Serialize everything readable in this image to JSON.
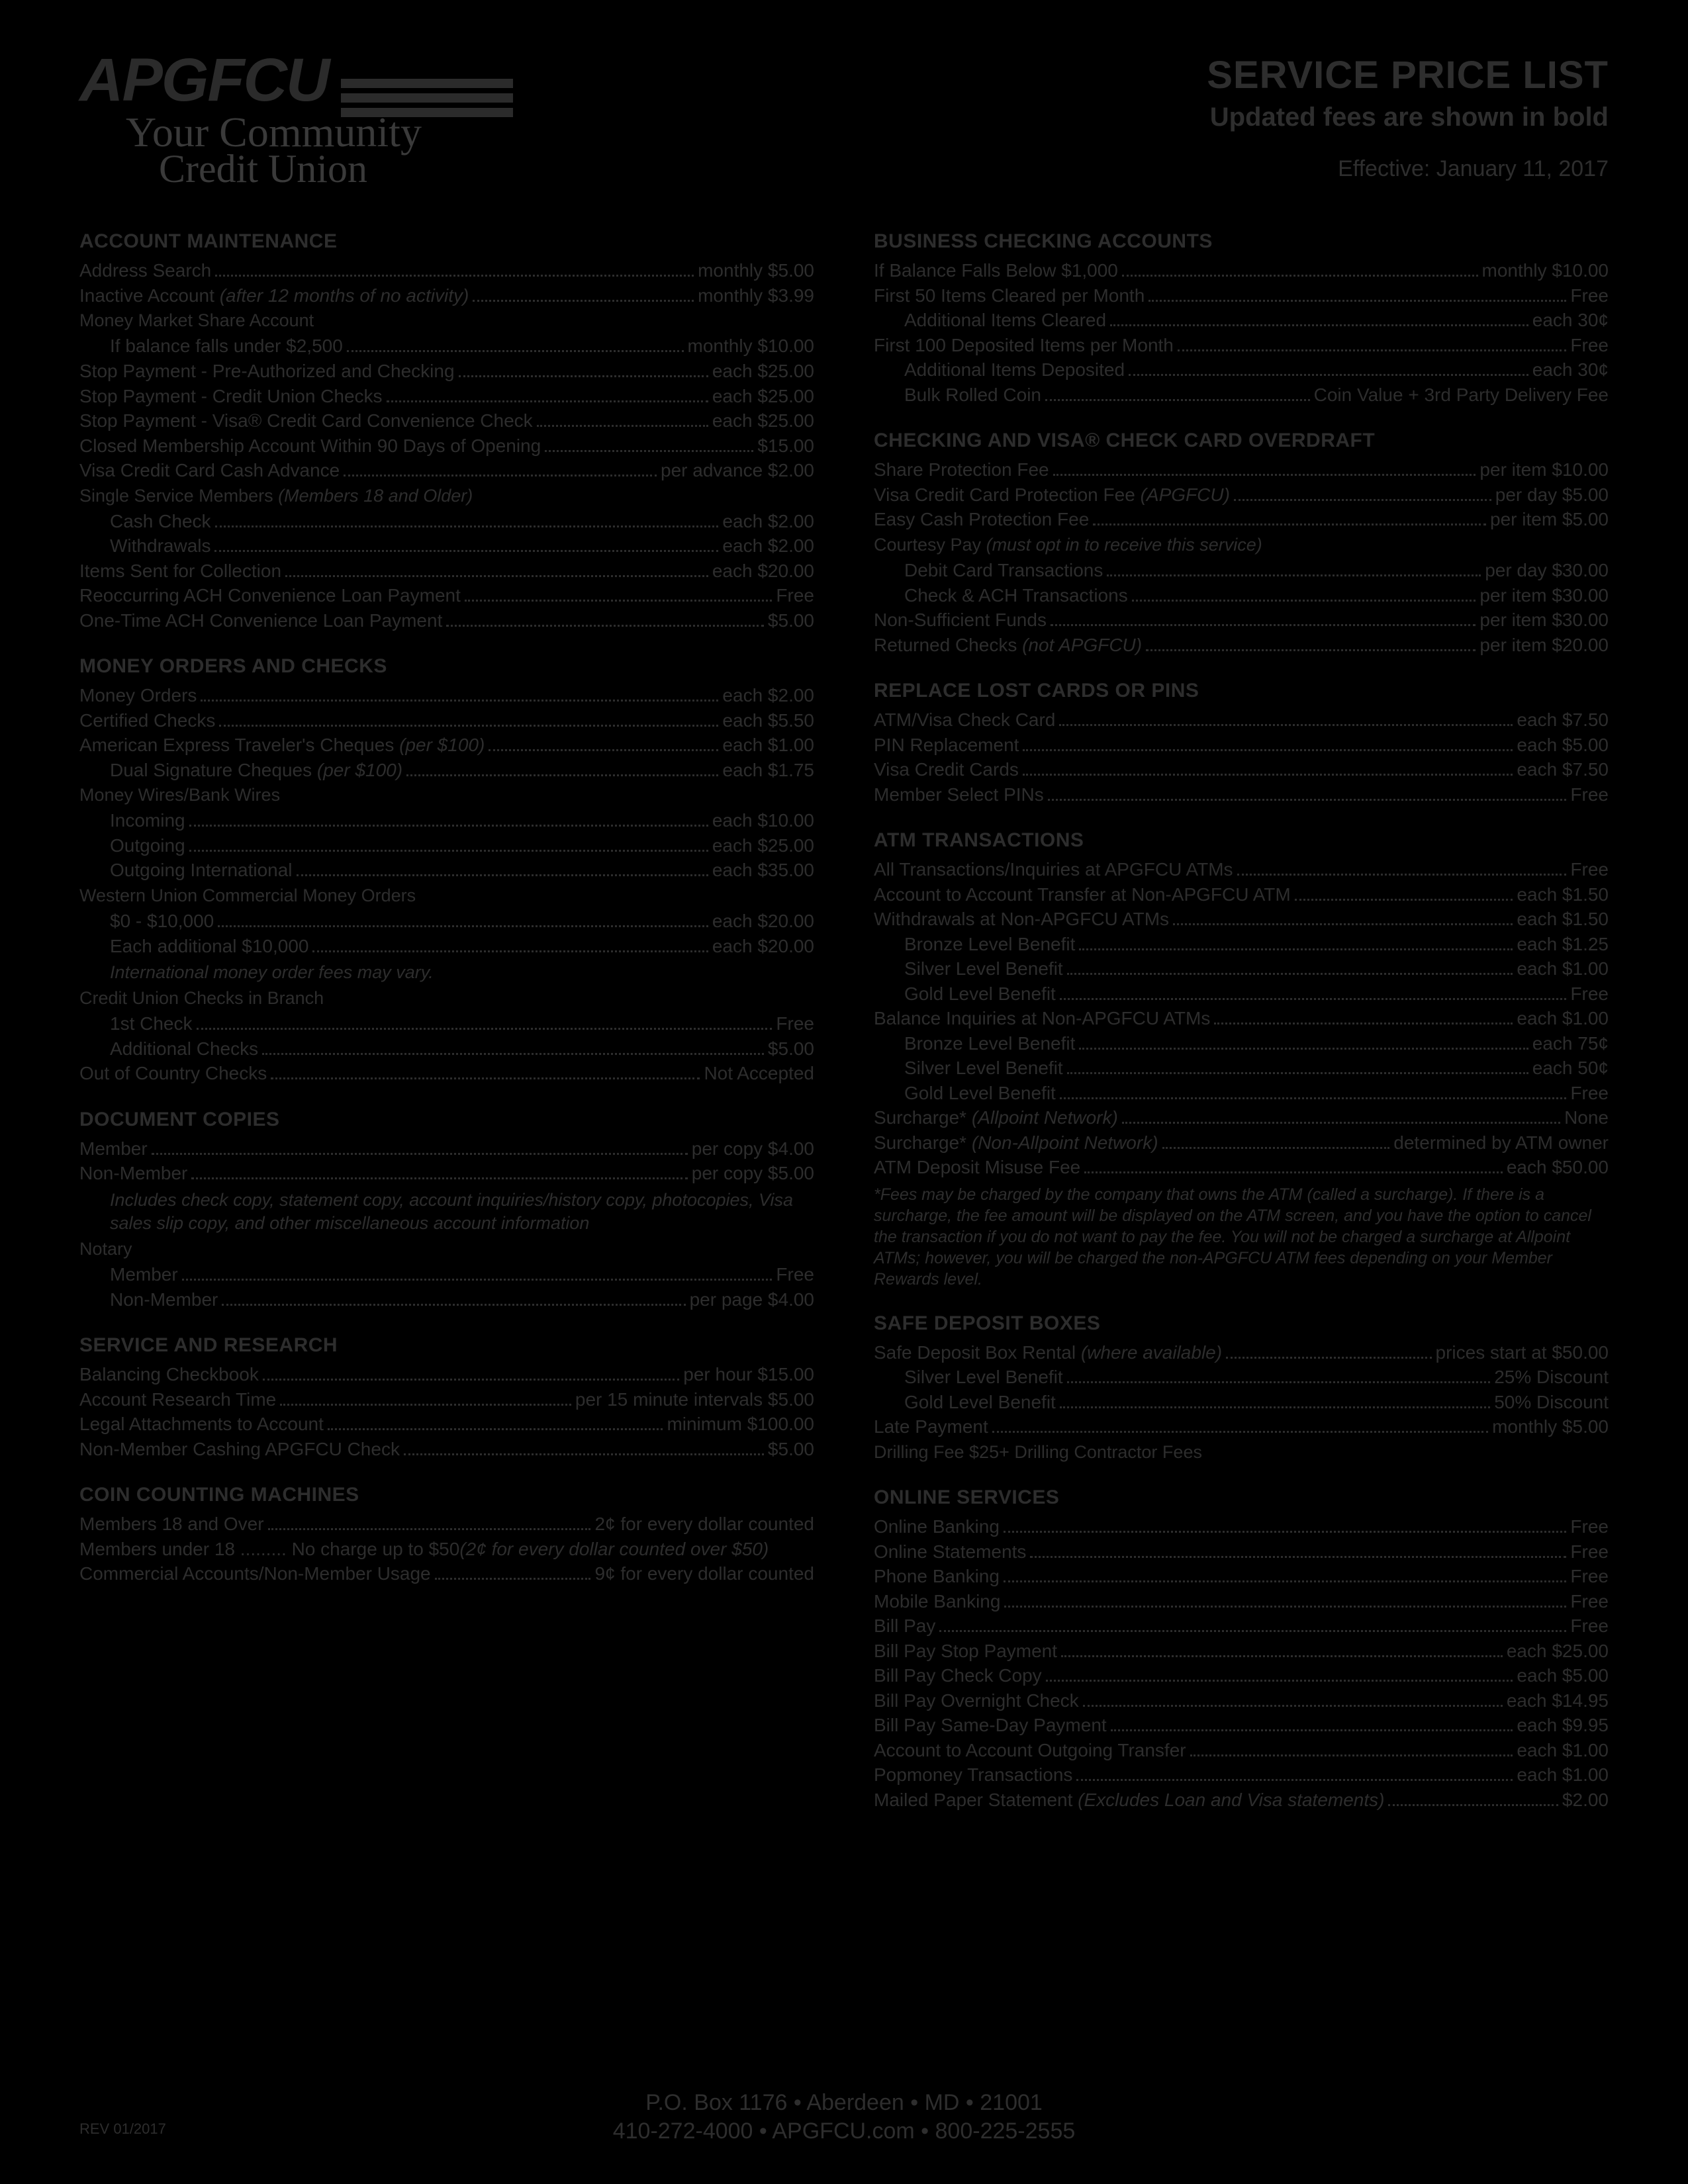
{
  "brand": {
    "name": "APGFCU",
    "tagline1": "Your Community",
    "tagline2": "Credit Union"
  },
  "header": {
    "title": "SERVICE PRICE LIST",
    "subtitle": "Updated fees are shown in bold",
    "effective": "Effective: January 11, 2017"
  },
  "footer": {
    "line1": "P.O. Box 1176 • Aberdeen • MD • 21001",
    "line2": "410-272-4000 • APGFCU.com • 800-225-2555",
    "rev": "REV 01/2017"
  },
  "left": [
    {
      "type": "title",
      "text": "ACCOUNT MAINTENANCE"
    },
    {
      "type": "row",
      "label": "Address Search",
      "value": "monthly $5.00"
    },
    {
      "type": "row",
      "label": "Inactive Account ",
      "label_italic": "(after 12 months of no activity)",
      "value": "monthly $3.99"
    },
    {
      "type": "plain",
      "text": "Money Market Share Account"
    },
    {
      "type": "row",
      "indent": 1,
      "label": "If balance falls under $2,500",
      "value": "monthly $10.00"
    },
    {
      "type": "row",
      "label": "Stop Payment - Pre-Authorized and Checking",
      "value": "each $25.00"
    },
    {
      "type": "row",
      "label": "Stop Payment - Credit Union Checks",
      "value": "each $25.00"
    },
    {
      "type": "row",
      "label": "Stop Payment - Visa® Credit Card Convenience Check",
      "value": "each $25.00"
    },
    {
      "type": "row",
      "label": "Closed Membership Account Within 90 Days of Opening",
      "value": "$15.00"
    },
    {
      "type": "row",
      "label": "Visa Credit Card Cash Advance",
      "value": "per advance $2.00"
    },
    {
      "type": "plain",
      "text": "Single Service Members ",
      "text_italic": "(Members 18 and Older)"
    },
    {
      "type": "row",
      "indent": 1,
      "label": "Cash Check",
      "value": "each $2.00"
    },
    {
      "type": "row",
      "indent": 1,
      "label": "Withdrawals",
      "value": "each $2.00"
    },
    {
      "type": "row",
      "label": "Items Sent for Collection",
      "value": "each $20.00"
    },
    {
      "type": "row",
      "label": "Reoccurring ACH Convenience Loan Payment",
      "value": "Free"
    },
    {
      "type": "row",
      "label": "One-Time ACH Convenience Loan Payment",
      "value": "$5.00"
    },
    {
      "type": "title",
      "text": "MONEY ORDERS AND CHECKS"
    },
    {
      "type": "row",
      "label": "Money Orders",
      "value": "each $2.00"
    },
    {
      "type": "row",
      "label": "Certified Checks",
      "value": "each $5.50"
    },
    {
      "type": "row",
      "label": "American Express Traveler's Cheques ",
      "label_italic": "(per $100)",
      "value": "each $1.00"
    },
    {
      "type": "row",
      "indent": 1,
      "label": "Dual Signature Cheques ",
      "label_italic": "(per $100)",
      "value": "each $1.75"
    },
    {
      "type": "plain",
      "text": "Money Wires/Bank Wires"
    },
    {
      "type": "row",
      "indent": 1,
      "label": "Incoming",
      "value": "each $10.00"
    },
    {
      "type": "row",
      "indent": 1,
      "label": "Outgoing",
      "value": "each $25.00"
    },
    {
      "type": "row",
      "indent": 1,
      "label": "Outgoing International",
      "value": "each $35.00"
    },
    {
      "type": "plain",
      "text": "Western Union Commercial Money Orders"
    },
    {
      "type": "row",
      "indent": 1,
      "label": "$0 - $10,000",
      "value": "each $20.00"
    },
    {
      "type": "row",
      "indent": 1,
      "label": "Each additional $10,000",
      "value": "each $20.00"
    },
    {
      "type": "note",
      "text": "International money order fees may vary."
    },
    {
      "type": "plain",
      "text": "Credit Union Checks in Branch"
    },
    {
      "type": "row",
      "indent": 1,
      "label": "1st Check",
      "value": "Free"
    },
    {
      "type": "row",
      "indent": 1,
      "label": "Additional Checks",
      "value": "$5.00"
    },
    {
      "type": "row",
      "label": "Out of Country Checks",
      "value": "Not Accepted"
    },
    {
      "type": "title",
      "text": "DOCUMENT COPIES"
    },
    {
      "type": "row",
      "label": "Member",
      "value": "per copy $4.00"
    },
    {
      "type": "row",
      "label": "Non-Member",
      "value": "per copy $5.00"
    },
    {
      "type": "note",
      "text": "Includes check copy, statement copy, account inquiries/history copy, photocopies, Visa sales slip copy, and other miscellaneous account information"
    },
    {
      "type": "plain",
      "text": "Notary"
    },
    {
      "type": "row",
      "indent": 1,
      "label": "Member",
      "value": "Free"
    },
    {
      "type": "row",
      "indent": 1,
      "label": "Non-Member",
      "value": "per page $4.00"
    },
    {
      "type": "title",
      "text": "SERVICE AND RESEARCH"
    },
    {
      "type": "row",
      "label": "Balancing Checkbook",
      "value": "per hour $15.00"
    },
    {
      "type": "row",
      "label": "Account Research Time",
      "value": "per 15 minute intervals $5.00"
    },
    {
      "type": "row",
      "label": "Legal Attachments to Account",
      "value": "minimum $100.00"
    },
    {
      "type": "row",
      "label": "Non-Member Cashing APGFCU Check",
      "value": "$5.00"
    },
    {
      "type": "title",
      "text": "COIN COUNTING MACHINES"
    },
    {
      "type": "row",
      "label": "Members 18 and Over",
      "value": "2¢ for every dollar counted"
    },
    {
      "type": "row",
      "label": "Members under 18 ......... No charge up to $50 ",
      "value_italic": "(2¢ for every dollar counted over $50)",
      "nodots": true
    },
    {
      "type": "row",
      "label": "Commercial Accounts/Non-Member Usage",
      "value": "9¢ for every dollar counted"
    }
  ],
  "right": [
    {
      "type": "title",
      "text": "BUSINESS CHECKING ACCOUNTS"
    },
    {
      "type": "row",
      "label": "If Balance Falls Below $1,000",
      "value": "monthly $10.00"
    },
    {
      "type": "row",
      "label": "First 50 Items Cleared per Month",
      "value": "Free"
    },
    {
      "type": "row",
      "indent": 1,
      "label": "Additional Items Cleared",
      "value": "each 30¢"
    },
    {
      "type": "row",
      "label": "First 100 Deposited Items per Month",
      "value": "Free"
    },
    {
      "type": "row",
      "indent": 1,
      "label": "Additional Items Deposited",
      "value": "each 30¢"
    },
    {
      "type": "row",
      "indent": 1,
      "label": "Bulk Rolled Coin",
      "value": "Coin Value + 3rd Party Delivery Fee"
    },
    {
      "type": "title",
      "text": "CHECKING AND VISA® CHECK CARD OVERDRAFT"
    },
    {
      "type": "row",
      "label": "Share Protection Fee",
      "value": "per item $10.00"
    },
    {
      "type": "row",
      "label": "Visa Credit Card Protection Fee ",
      "label_italic": "(APGFCU)",
      "value": "per day $5.00"
    },
    {
      "type": "row",
      "label": "Easy Cash Protection Fee",
      "value": "per item $5.00"
    },
    {
      "type": "plain",
      "text": "Courtesy Pay ",
      "text_italic": "(must opt in to receive this service)"
    },
    {
      "type": "row",
      "indent": 1,
      "label": "Debit Card Transactions",
      "value": "per day $30.00"
    },
    {
      "type": "row",
      "indent": 1,
      "label": "Check & ACH Transactions",
      "value": "per item $30.00"
    },
    {
      "type": "row",
      "label": "Non-Sufficient Funds",
      "value": "per item $30.00"
    },
    {
      "type": "row",
      "label": "Returned Checks ",
      "label_italic": "(not  APGFCU)",
      "value": "per item $20.00"
    },
    {
      "type": "title",
      "text": "REPLACE LOST CARDS OR PINs"
    },
    {
      "type": "row",
      "label": "ATM/Visa Check Card",
      "value": "each $7.50"
    },
    {
      "type": "row",
      "label": "PIN Replacement",
      "value": "each $5.00"
    },
    {
      "type": "row",
      "label": "Visa Credit Cards",
      "value": "each $7.50"
    },
    {
      "type": "row",
      "label": "Member Select PINs",
      "value": "Free"
    },
    {
      "type": "title",
      "text": "ATM TRANSACTIONS"
    },
    {
      "type": "row",
      "label": "All Transactions/Inquiries at APGFCU ATMs",
      "value": "Free"
    },
    {
      "type": "row",
      "label": "Account to Account Transfer at Non-APGFCU ATM",
      "value": "each $1.50"
    },
    {
      "type": "row",
      "label": "Withdrawals at Non-APGFCU ATMs",
      "value": "each $1.50"
    },
    {
      "type": "row",
      "indent": 1,
      "label": "Bronze Level Benefit",
      "value": "each $1.25"
    },
    {
      "type": "row",
      "indent": 1,
      "label": "Silver Level Benefit",
      "value": "each $1.00"
    },
    {
      "type": "row",
      "indent": 1,
      "label": "Gold Level Benefit",
      "value": "Free"
    },
    {
      "type": "row",
      "label": "Balance Inquiries at Non-APGFCU ATMs",
      "value": "each $1.00"
    },
    {
      "type": "row",
      "indent": 1,
      "label": "Bronze Level Benefit",
      "value": "each 75¢"
    },
    {
      "type": "row",
      "indent": 1,
      "label": "Silver Level Benefit",
      "value": "each 50¢"
    },
    {
      "type": "row",
      "indent": 1,
      "label": "Gold Level Benefit",
      "value": "Free"
    },
    {
      "type": "row",
      "label": "Surcharge* ",
      "label_italic": "(Allpoint Network)",
      "value": "None"
    },
    {
      "type": "row",
      "label": "Surcharge* ",
      "label_italic": "(Non-Allpoint Network)",
      "value": "determined by ATM owner"
    },
    {
      "type": "row",
      "label": "ATM Deposit Misuse Fee",
      "value": "each $50.00"
    },
    {
      "type": "smallnote",
      "text": "*Fees may be charged by the company that owns the ATM (called a surcharge). If there is a surcharge, the fee amount will be displayed on the ATM screen, and you have the option to cancel the transaction if you do not want to pay the fee. You will not be charged a surcharge at Allpoint ATMs; however, you will be charged the non-APGFCU ATM fees depending on your Member Rewards level."
    },
    {
      "type": "title",
      "text": "SAFE DEPOSIT BOXES"
    },
    {
      "type": "row",
      "label": "Safe Deposit Box Rental ",
      "label_italic": "(where available)",
      "value": "prices start at $50.00"
    },
    {
      "type": "row",
      "indent": 1,
      "label": "Silver Level Benefit",
      "value": "25% Discount"
    },
    {
      "type": "row",
      "indent": 1,
      "label": "Gold Level Benefit",
      "value": "50% Discount"
    },
    {
      "type": "row",
      "label": "Late Payment",
      "value": "monthly $5.00"
    },
    {
      "type": "plain",
      "text": "Drilling Fee $25+ Drilling Contractor Fees"
    },
    {
      "type": "title",
      "text": "ONLINE SERVICES"
    },
    {
      "type": "row",
      "label": "Online Banking",
      "value": "Free"
    },
    {
      "type": "row",
      "label": "Online Statements",
      "value": "Free"
    },
    {
      "type": "row",
      "label": "Phone Banking",
      "value": "Free"
    },
    {
      "type": "row",
      "label": "Mobile Banking",
      "value": "Free"
    },
    {
      "type": "row",
      "label": "Bill Pay",
      "value": "Free"
    },
    {
      "type": "row",
      "label": "Bill Pay Stop Payment",
      "value": "each $25.00"
    },
    {
      "type": "row",
      "label": "Bill Pay Check Copy",
      "value": "each $5.00"
    },
    {
      "type": "row",
      "label": "Bill Pay Overnight Check",
      "value": "each $14.95"
    },
    {
      "type": "row",
      "label": "Bill Pay Same-Day Payment",
      "value": "each $9.95"
    },
    {
      "type": "row",
      "label": "Account to Account Outgoing Transfer",
      "value": "each $1.00"
    },
    {
      "type": "row",
      "label": "Popmoney Transactions",
      "value": "each $1.00"
    },
    {
      "type": "row",
      "label": "Mailed Paper Statement ",
      "label_italic": "(Excludes Loan and Visa statements)",
      "value": "$2.00"
    }
  ]
}
